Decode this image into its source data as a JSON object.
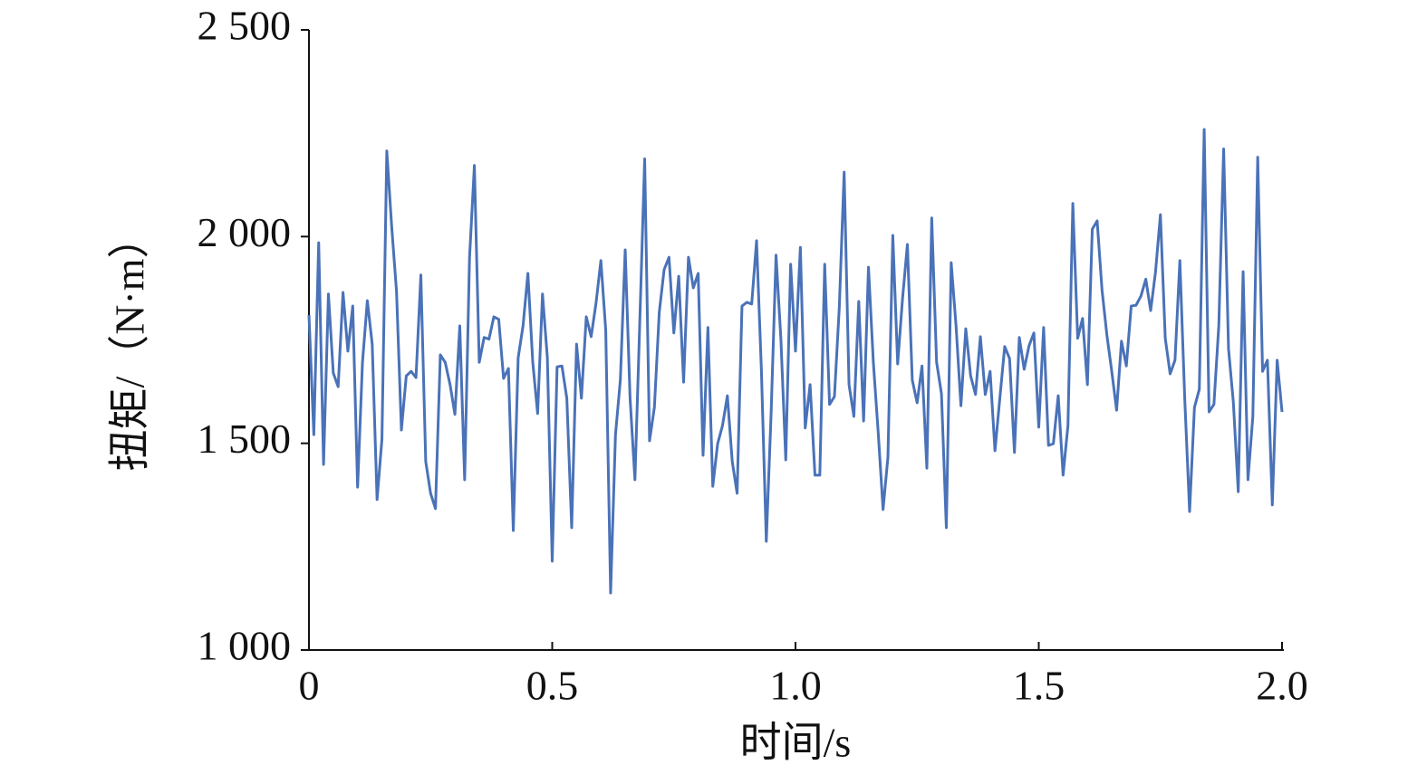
{
  "chart_data": {
    "type": "line",
    "x_label": "时间/s",
    "y_label": "扭矩/（N·m）",
    "color": "#4a72b8",
    "xlim": [
      0,
      2
    ],
    "ylim": [
      1000,
      2500
    ],
    "xticks": [
      0,
      0.5,
      {
        "value": 1,
        "label": "1.0"
      },
      1.5,
      {
        "value": 2,
        "label": "2.0"
      }
    ],
    "yticks": [
      {
        "value": 1000,
        "label": "1 000"
      },
      {
        "value": 1500,
        "label": "1 500"
      },
      {
        "value": 2000,
        "label": "2 000"
      },
      {
        "value": 2500,
        "label": "2 500"
      }
    ],
    "x": [
      0,
      0.01,
      0.02,
      0.03,
      0.04,
      0.05,
      0.06,
      0.07,
      0.08,
      0.09,
      0.1,
      0.11,
      0.12,
      0.13,
      0.14,
      0.15,
      0.16,
      0.17,
      0.18,
      0.19,
      0.2,
      0.21,
      0.22,
      0.23,
      0.24,
      0.25,
      0.26,
      0.27,
      0.28,
      0.29,
      0.3,
      0.31,
      0.32,
      0.33,
      0.34,
      0.35,
      0.36,
      0.37,
      0.38,
      0.39,
      0.4,
      0.41,
      0.42,
      0.43,
      0.44,
      0.45,
      0.46,
      0.47,
      0.48,
      0.49,
      0.5,
      0.51,
      0.52,
      0.53,
      0.54,
      0.55,
      0.56,
      0.57,
      0.58,
      0.59,
      0.6,
      0.61,
      0.62,
      0.63,
      0.64,
      0.65,
      0.66,
      0.67,
      0.68,
      0.69,
      0.7,
      0.71,
      0.72,
      0.73,
      0.74,
      0.75,
      0.76,
      0.77,
      0.78,
      0.79,
      0.8,
      0.81,
      0.82,
      0.83,
      0.84,
      0.85,
      0.86,
      0.87,
      0.88,
      0.89,
      0.9,
      0.91,
      0.92,
      0.93,
      0.94,
      0.95,
      0.96,
      0.97,
      0.98,
      0.99,
      1,
      1.01,
      1.02,
      1.03,
      1.04,
      1.05,
      1.06,
      1.07,
      1.08,
      1.09,
      1.1,
      1.11,
      1.12,
      1.13,
      1.14,
      1.15,
      1.16,
      1.17,
      1.18,
      1.19,
      1.2,
      1.21,
      1.22,
      1.23,
      1.24,
      1.25,
      1.26,
      1.27,
      1.28,
      1.29,
      1.3,
      1.31,
      1.32,
      1.33,
      1.34,
      1.35,
      1.36,
      1.37,
      1.38,
      1.39,
      1.4,
      1.41,
      1.42,
      1.43,
      1.44,
      1.45,
      1.46,
      1.47,
      1.48,
      1.49,
      1.5,
      1.51,
      1.52,
      1.53,
      1.54,
      1.55,
      1.56,
      1.57,
      1.58,
      1.59,
      1.6,
      1.61,
      1.62,
      1.63,
      1.64,
      1.65,
      1.66,
      1.67,
      1.68,
      1.69,
      1.7,
      1.71,
      1.72,
      1.73,
      1.74,
      1.75,
      1.76,
      1.77,
      1.78,
      1.79,
      1.8,
      1.81,
      1.82,
      1.83,
      1.84,
      1.85,
      1.86,
      1.87,
      1.88,
      1.89,
      1.9,
      1.91,
      1.92,
      1.93,
      1.94,
      1.95,
      1.96,
      1.97,
      1.98,
      1.99,
      2
    ],
    "values": [
      1810,
      1521,
      1985,
      1449,
      1861,
      1670,
      1637,
      1865,
      1723,
      1832,
      1394,
      1696,
      1845,
      1740,
      1364,
      1510,
      2207,
      2025,
      1867,
      1532,
      1663,
      1674,
      1659,
      1907,
      1456,
      1379,
      1342,
      1714,
      1696,
      1642,
      1570,
      1784,
      1412,
      1948,
      2172,
      1696,
      1756,
      1752,
      1806,
      1800,
      1657,
      1681,
      1289,
      1707,
      1784,
      1911,
      1696,
      1572,
      1861,
      1707,
      1215,
      1685,
      1687,
      1609,
      1296,
      1740,
      1609,
      1806,
      1758,
      1839,
      1942,
      1773,
      1138,
      1521,
      1653,
      1968,
      1609,
      1412,
      1795,
      2188,
      1506,
      1587,
      1817,
      1920,
      1950,
      1767,
      1904,
      1648,
      1950,
      1876,
      1911,
      1471,
      1780,
      1396,
      1499,
      1543,
      1615,
      1456,
      1379,
      1832,
      1841,
      1837,
      1990,
      1674,
      1263,
      1576,
      1955,
      1752,
      1460,
      1933,
      1723,
      1974,
      1537,
      1642,
      1423,
      1423,
      1933,
      1594,
      1613,
      1828,
      2156,
      1642,
      1565,
      1843,
      1554,
      1926,
      1696,
      1526,
      1340,
      1467,
      2003,
      1692,
      1850,
      1981,
      1653,
      1598,
      1687,
      1440,
      2045,
      1696,
      1620,
      1296,
      1937,
      1784,
      1591,
      1777,
      1663,
      1618,
      1758,
      1618,
      1674,
      1482,
      1609,
      1734,
      1705,
      1478,
      1756,
      1679,
      1736,
      1767,
      1539,
      1780,
      1495,
      1499,
      1615,
      1423,
      1543,
      2080,
      1754,
      1802,
      1642,
      2018,
      2038,
      1871,
      1762,
      1674,
      1580,
      1747,
      1687,
      1832,
      1834,
      1856,
      1897,
      1821,
      1915,
      2053,
      1754,
      1668,
      1701,
      1942,
      1609,
      1335,
      1587,
      1631,
      2259,
      1576,
      1594,
      1784,
      2212,
      1729,
      1598,
      1383,
      1915,
      1412,
      1565,
      2192,
      1674,
      1701,
      1351,
      1701,
      1576
    ]
  }
}
